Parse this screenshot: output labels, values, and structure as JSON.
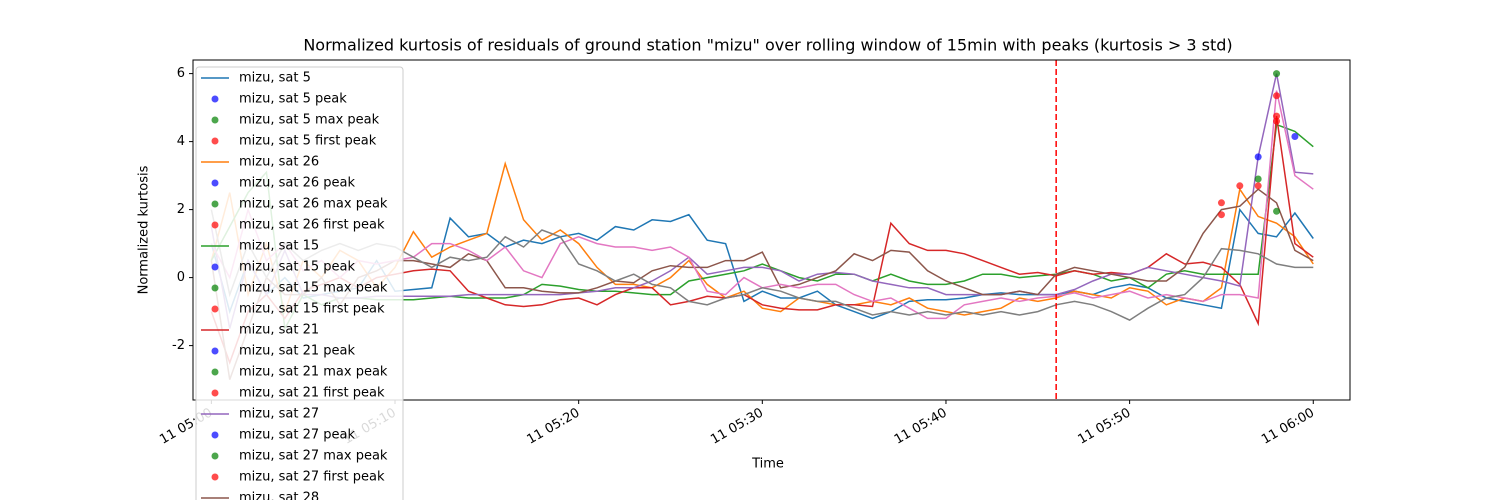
{
  "chart_data": {
    "type": "line",
    "title": "Normalized kurtosis of residuals of ground station \"mizu\" over rolling window of 15min with peaks (kurtosis > 3 std)",
    "xlabel": "Time",
    "ylabel": "Normalized kurtosis",
    "x": [
      "11 05:00",
      "11 05:01",
      "11 05:02",
      "11 05:03",
      "11 05:04",
      "11 05:05",
      "11 05:06",
      "11 05:07",
      "11 05:08",
      "11 05:09",
      "11 05:10",
      "11 05:11",
      "11 05:12",
      "11 05:13",
      "11 05:14",
      "11 05:15",
      "11 05:16",
      "11 05:17",
      "11 05:18",
      "11 05:19",
      "11 05:20",
      "11 05:21",
      "11 05:22",
      "11 05:23",
      "11 05:24",
      "11 05:25",
      "11 05:26",
      "11 05:27",
      "11 05:28",
      "11 05:29",
      "11 05:30",
      "11 05:31",
      "11 05:32",
      "11 05:33",
      "11 05:34",
      "11 05:35",
      "11 05:36",
      "11 05:37",
      "11 05:38",
      "11 05:39",
      "11 05:40",
      "11 05:41",
      "11 05:42",
      "11 05:43",
      "11 05:44",
      "11 05:45",
      "11 05:46",
      "11 05:47",
      "11 05:48",
      "11 05:49",
      "11 05:50",
      "11 05:51",
      "11 05:52",
      "11 05:53",
      "11 05:54",
      "11 05:55",
      "11 05:56",
      "11 05:57",
      "11 05:58",
      "11 05:59",
      "11 06:00"
    ],
    "xlim": [
      "11 04:59",
      "11 06:02"
    ],
    "xticks": [
      "11 05:00",
      "11 05:10",
      "11 05:20",
      "11 05:30",
      "11 05:40",
      "11 05:50",
      "11 06:00"
    ],
    "ylim": [
      -3.6,
      6.4
    ],
    "yticks": [
      -2,
      0,
      2,
      4,
      6
    ],
    "vline": {
      "x": "11 05:46",
      "color": "#ff0000"
    },
    "series": [
      {
        "name": "mizu, sat 5",
        "type": "line",
        "color": "#1f77b4",
        "values": [
          1.0,
          -1.0,
          0.5,
          -0.5,
          0.0,
          -0.6,
          -0.5,
          -0.4,
          -0.3,
          0.5,
          -0.4,
          -0.35,
          -0.3,
          1.75,
          1.2,
          1.3,
          0.9,
          1.1,
          1.0,
          1.2,
          1.3,
          1.1,
          1.5,
          1.4,
          1.7,
          1.65,
          1.85,
          1.1,
          1.0,
          -0.7,
          -0.4,
          -0.6,
          -0.6,
          -0.4,
          -0.8,
          -1.0,
          -1.2,
          -1.0,
          -0.7,
          -0.65,
          -0.65,
          -0.6,
          -0.5,
          -0.45,
          -0.5,
          -0.5,
          -0.5,
          -0.4,
          -0.5,
          -0.3,
          -0.2,
          -0.3,
          -0.6,
          -0.7,
          -0.8,
          -0.9,
          2.0,
          1.3,
          1.2,
          1.9,
          1.15
        ]
      },
      {
        "name": "mizu, sat 5 peak",
        "type": "scatter",
        "color": "#0000ff",
        "x": [
          "11 05:57",
          "11 05:59"
        ],
        "values": [
          3.55,
          4.15
        ]
      },
      {
        "name": "mizu, sat 5 max peak",
        "type": "scatter",
        "color": "#008000",
        "x": [
          "11 05:58"
        ],
        "values": [
          6.0
        ]
      },
      {
        "name": "mizu, sat 5 first peak",
        "type": "scatter",
        "color": "#ff0000",
        "x": [
          "11 05:58"
        ],
        "values": [
          5.35
        ]
      },
      {
        "name": "mizu, sat 26",
        "type": "line",
        "color": "#ff7f0e",
        "values": [
          0.5,
          2.5,
          -0.5,
          1.0,
          -1.0,
          0.5,
          0.0,
          0.8,
          0.5,
          -0.3,
          0.3,
          1.35,
          0.6,
          0.9,
          1.1,
          1.3,
          3.35,
          1.7,
          1.1,
          1.4,
          1.0,
          0.3,
          -0.2,
          -0.2,
          -0.3,
          0.0,
          0.5,
          -0.2,
          -0.6,
          -0.4,
          -0.9,
          -1.0,
          -0.6,
          -0.7,
          -0.8,
          -0.8,
          -0.7,
          -0.8,
          -0.6,
          -0.9,
          -1.0,
          -1.1,
          -1.0,
          -0.9,
          -0.6,
          -0.7,
          -0.6,
          -0.4,
          -0.5,
          -0.6,
          -0.3,
          -0.4,
          -0.8,
          -0.6,
          -0.7,
          -0.3,
          2.6,
          1.8,
          1.6,
          1.2,
          0.4
        ]
      },
      {
        "name": "mizu, sat 26 peak",
        "type": "scatter",
        "color": "#0000ff",
        "x": [],
        "values": []
      },
      {
        "name": "mizu, sat 26 max peak",
        "type": "scatter",
        "color": "#008000",
        "x": [
          "11 05:58"
        ],
        "values": [
          1.95
        ]
      },
      {
        "name": "mizu, sat 26 first peak",
        "type": "scatter",
        "color": "#ff0000",
        "x": [
          "11 05:55"
        ],
        "values": [
          1.85
        ]
      },
      {
        "name": "mizu, sat 15",
        "type": "line",
        "color": "#2ca02c",
        "values": [
          0.5,
          1.5,
          2.5,
          3.1,
          -1.5,
          -0.5,
          -0.8,
          -0.6,
          -0.6,
          -0.65,
          -0.65,
          -0.65,
          -0.6,
          -0.55,
          -0.6,
          -0.6,
          -0.6,
          -0.5,
          -0.2,
          -0.25,
          -0.35,
          -0.4,
          -0.4,
          -0.45,
          -0.5,
          -0.5,
          -0.1,
          0.0,
          0.1,
          0.2,
          0.4,
          0.2,
          0.0,
          -0.1,
          0.1,
          0.1,
          -0.1,
          0.1,
          -0.1,
          -0.2,
          -0.2,
          -0.1,
          0.1,
          0.1,
          0.0,
          0.05,
          0.1,
          0.2,
          0.1,
          -0.1,
          0.0,
          -0.3,
          0.1,
          0.2,
          0.1,
          0.1,
          0.1,
          0.1,
          4.5,
          4.3,
          3.85
        ]
      },
      {
        "name": "mizu, sat 15 peak",
        "type": "scatter",
        "color": "#0000ff",
        "x": [],
        "values": []
      },
      {
        "name": "mizu, sat 15 max peak",
        "type": "scatter",
        "color": "#008000",
        "x": [
          "11 05:57"
        ],
        "values": [
          2.9
        ]
      },
      {
        "name": "mizu, sat 15 first peak",
        "type": "scatter",
        "color": "#ff0000",
        "x": [
          "11 05:57"
        ],
        "values": [
          2.7
        ]
      },
      {
        "name": "mizu, sat 21",
        "type": "line",
        "color": "#d62728",
        "values": [
          -1.0,
          -2.5,
          -1.0,
          -0.5,
          -1.2,
          -0.4,
          -0.2,
          0.0,
          -0.3,
          0.0,
          0.1,
          0.2,
          0.25,
          0.2,
          -0.4,
          -0.6,
          -0.8,
          -0.85,
          -0.8,
          -0.65,
          -0.6,
          -0.8,
          -0.5,
          -0.3,
          -0.3,
          -0.8,
          -0.7,
          -0.55,
          -0.6,
          -0.5,
          -0.8,
          -0.9,
          -0.95,
          -0.95,
          -0.8,
          -0.8,
          -0.85,
          1.6,
          1.0,
          0.8,
          0.8,
          0.7,
          0.5,
          0.3,
          0.1,
          0.15,
          0.05,
          0.2,
          0.1,
          0.15,
          0.1,
          0.3,
          0.7,
          0.4,
          0.45,
          0.3,
          -0.2,
          -1.35,
          4.75,
          1.0,
          0.6
        ]
      },
      {
        "name": "mizu, sat 21 peak",
        "type": "scatter",
        "color": "#0000ff",
        "x": [],
        "values": []
      },
      {
        "name": "mizu, sat 21 max peak",
        "type": "scatter",
        "color": "#008000",
        "x": [],
        "values": []
      },
      {
        "name": "mizu, sat 21 first peak",
        "type": "scatter",
        "color": "#ff0000",
        "x": [
          "11 05:55",
          "11 05:58"
        ],
        "values": [
          2.2,
          4.75
        ]
      },
      {
        "name": "mizu, sat 27",
        "type": "line",
        "color": "#9467bd",
        "values": [
          1.5,
          -1.5,
          0.5,
          -0.5,
          0.8,
          -0.5,
          -0.5,
          -0.6,
          -0.6,
          -0.55,
          -0.55,
          -0.55,
          -0.55,
          -0.55,
          -0.5,
          -0.5,
          -0.5,
          -0.5,
          -0.5,
          -0.5,
          -0.45,
          -0.4,
          -0.3,
          -0.3,
          -0.1,
          0.2,
          0.6,
          0.1,
          0.2,
          0.3,
          0.3,
          0.2,
          -0.1,
          0.1,
          0.15,
          0.1,
          -0.1,
          -0.2,
          -0.3,
          -0.3,
          -0.5,
          -0.5,
          -0.5,
          -0.5,
          -0.4,
          -0.5,
          -0.5,
          -0.35,
          -0.1,
          0.1,
          0.1,
          0.3,
          0.2,
          0.1,
          0.0,
          -0.1,
          -0.25,
          3.55,
          6.0,
          3.1,
          3.05
        ]
      },
      {
        "name": "mizu, sat 27 peak",
        "type": "scatter",
        "color": "#0000ff",
        "x": [],
        "values": []
      },
      {
        "name": "mizu, sat 27 max peak",
        "type": "scatter",
        "color": "#008000",
        "x": [],
        "values": []
      },
      {
        "name": "mizu, sat 27 first peak",
        "type": "scatter",
        "color": "#ff0000",
        "x": [
          "11 05:56",
          "11 05:58"
        ],
        "values": [
          2.7,
          4.6
        ]
      },
      {
        "name": "mizu, sat 28",
        "type": "line",
        "color": "#8c564b",
        "values": [
          0.5,
          -3.0,
          -1.5,
          0.0,
          -0.5,
          -0.5,
          0.0,
          -0.8,
          0.0,
          0.2,
          0.5,
          0.5,
          0.4,
          0.3,
          0.7,
          0.5,
          -0.3,
          -0.3,
          -0.4,
          -0.45,
          -0.45,
          -0.3,
          -0.1,
          -0.15,
          0.2,
          0.35,
          0.3,
          0.3,
          0.5,
          0.5,
          0.75,
          -0.3,
          -0.2,
          0.0,
          0.2,
          0.7,
          0.5,
          0.8,
          0.75,
          0.2,
          -0.1,
          -0.3,
          -0.5,
          -0.5,
          -0.4,
          -0.5,
          0.1,
          0.3,
          0.2,
          0.1,
          0.0,
          -0.1,
          -0.1,
          0.3,
          1.3,
          2.0,
          2.1,
          2.6,
          2.2,
          0.8,
          0.5
        ]
      },
      {
        "type": "line",
        "color": "#e377c2",
        "values": [
          1.0,
          0.0,
          2.0,
          0.5,
          1.0,
          0.2,
          0.5,
          0.0,
          0.5,
          0.4,
          0.5,
          0.6,
          1.0,
          1.0,
          0.8,
          0.5,
          0.9,
          0.2,
          0.0,
          1.0,
          1.2,
          1.0,
          0.9,
          0.9,
          0.8,
          0.9,
          0.6,
          -0.4,
          -0.5,
          0.0,
          -0.3,
          -0.2,
          -0.3,
          -0.2,
          -0.2,
          -0.5,
          -0.7,
          -0.6,
          -0.9,
          -1.2,
          -1.2,
          -0.8,
          -0.7,
          -0.6,
          -0.7,
          -0.6,
          -0.55,
          -0.45,
          -0.6,
          -0.5,
          -0.4,
          -0.6,
          -0.5,
          -0.6,
          -0.7,
          -0.5,
          -0.5,
          -0.6,
          5.5,
          3.0,
          2.6
        ]
      },
      {
        "type": "line",
        "color": "#7f7f7f",
        "values": [
          2.0,
          -0.5,
          1.0,
          0.0,
          1.0,
          0.5,
          0.8,
          1.0,
          0.8,
          1.0,
          0.9,
          0.6,
          0.3,
          0.6,
          0.5,
          0.6,
          1.2,
          0.9,
          1.4,
          1.2,
          0.4,
          0.2,
          -0.1,
          0.1,
          -0.2,
          -0.3,
          -0.7,
          -0.8,
          -0.6,
          -0.5,
          -0.3,
          -0.4,
          -0.6,
          -0.7,
          -0.7,
          -0.9,
          -1.1,
          -1.0,
          -1.1,
          -1.0,
          -1.1,
          -1.0,
          -1.1,
          -1.0,
          -1.1,
          -1.0,
          -0.8,
          -0.7,
          -0.8,
          -1.0,
          -1.25,
          -0.9,
          -0.6,
          -0.5,
          0.0,
          0.85,
          0.8,
          0.7,
          0.4,
          0.3,
          0.3
        ]
      }
    ]
  }
}
